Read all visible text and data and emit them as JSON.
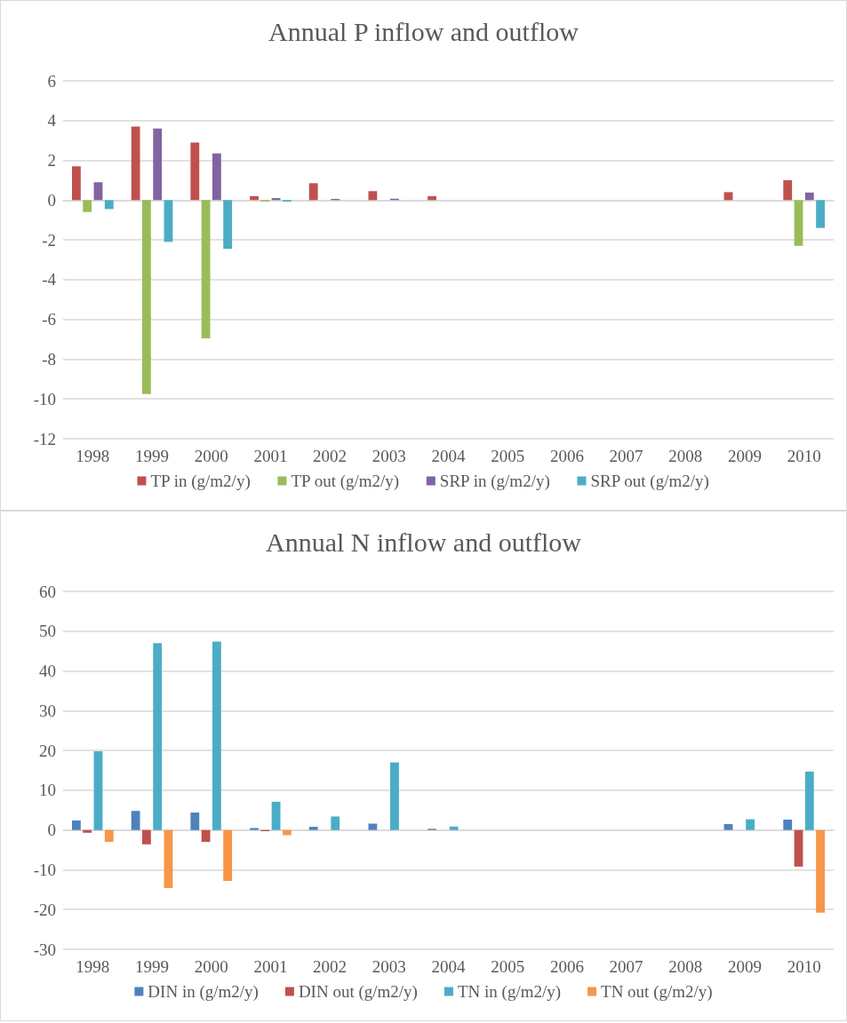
{
  "chart_data": [
    {
      "type": "bar",
      "title": "Annual P inflow and outflow",
      "categories": [
        "1998",
        "1999",
        "2000",
        "2001",
        "2002",
        "2003",
        "2004",
        "2005",
        "2006",
        "2007",
        "2008",
        "2009",
        "2010"
      ],
      "series": [
        {
          "name": "TP in (g/m2/y)",
          "color": "#c0504d",
          "values": [
            1.7,
            3.7,
            2.9,
            0.2,
            0.85,
            0.45,
            0.2,
            0,
            null,
            0,
            0,
            0.4,
            1.0
          ]
        },
        {
          "name": "TP out (g/m2/y)",
          "color": "#9bbb59",
          "values": [
            -0.6,
            -9.75,
            -6.95,
            -0.08,
            0,
            0,
            0,
            0,
            0,
            0,
            0,
            0,
            -2.3
          ]
        },
        {
          "name": "SRP in (g/m2/y)",
          "color": "#8064a2",
          "values": [
            0.9,
            3.6,
            2.35,
            0.1,
            0.06,
            0.07,
            null,
            0,
            0,
            0,
            0,
            null,
            0.38
          ]
        },
        {
          "name": "SRP out (g/m2/y)",
          "color": "#4bacc6",
          "values": [
            -0.45,
            -2.1,
            -2.45,
            -0.08,
            0,
            0,
            0,
            0,
            0,
            0,
            0,
            0,
            -1.4
          ]
        }
      ],
      "ylim": [
        -12,
        6
      ],
      "yticks": [
        -12,
        -10,
        -8,
        -6,
        -4,
        -2,
        0,
        2,
        4,
        6
      ],
      "grid": "y",
      "legend": "bottom"
    },
    {
      "type": "bar",
      "title": "Annual N inflow and outflow",
      "categories": [
        "1998",
        "1999",
        "2000",
        "2001",
        "2002",
        "2003",
        "2004",
        "2005",
        "2006",
        "2007",
        "2008",
        "2009",
        "2010"
      ],
      "series": [
        {
          "name": "DIN in (g/m2/y)",
          "color": "#4f81bd",
          "values": [
            2.4,
            4.8,
            4.4,
            0.5,
            0.8,
            1.6,
            0.3,
            0,
            0,
            0,
            0,
            1.5,
            2.6
          ]
        },
        {
          "name": "DIN out (g/m2/y)",
          "color": "#c0504d",
          "values": [
            -0.7,
            -3.6,
            -3.0,
            -0.3,
            0,
            0,
            0,
            0,
            0,
            0,
            0,
            0,
            -9.2
          ]
        },
        {
          "name": "TN in (g/m2/y)",
          "color": "#4bacc6",
          "values": [
            19.8,
            47,
            47.4,
            7.1,
            3.4,
            17,
            0.9,
            0,
            0,
            0,
            0,
            2.7,
            14.7
          ]
        },
        {
          "name": "TN out (g/m2/y)",
          "color": "#f79646",
          "values": [
            -3,
            -14.6,
            -12.8,
            -1.3,
            0,
            0,
            0,
            0,
            0,
            0,
            0,
            0,
            -20.8
          ]
        }
      ],
      "ylim": [
        -30,
        60
      ],
      "yticks": [
        -30,
        -20,
        -10,
        0,
        10,
        20,
        30,
        40,
        50,
        60
      ],
      "grid": "y",
      "legend": "bottom"
    }
  ]
}
